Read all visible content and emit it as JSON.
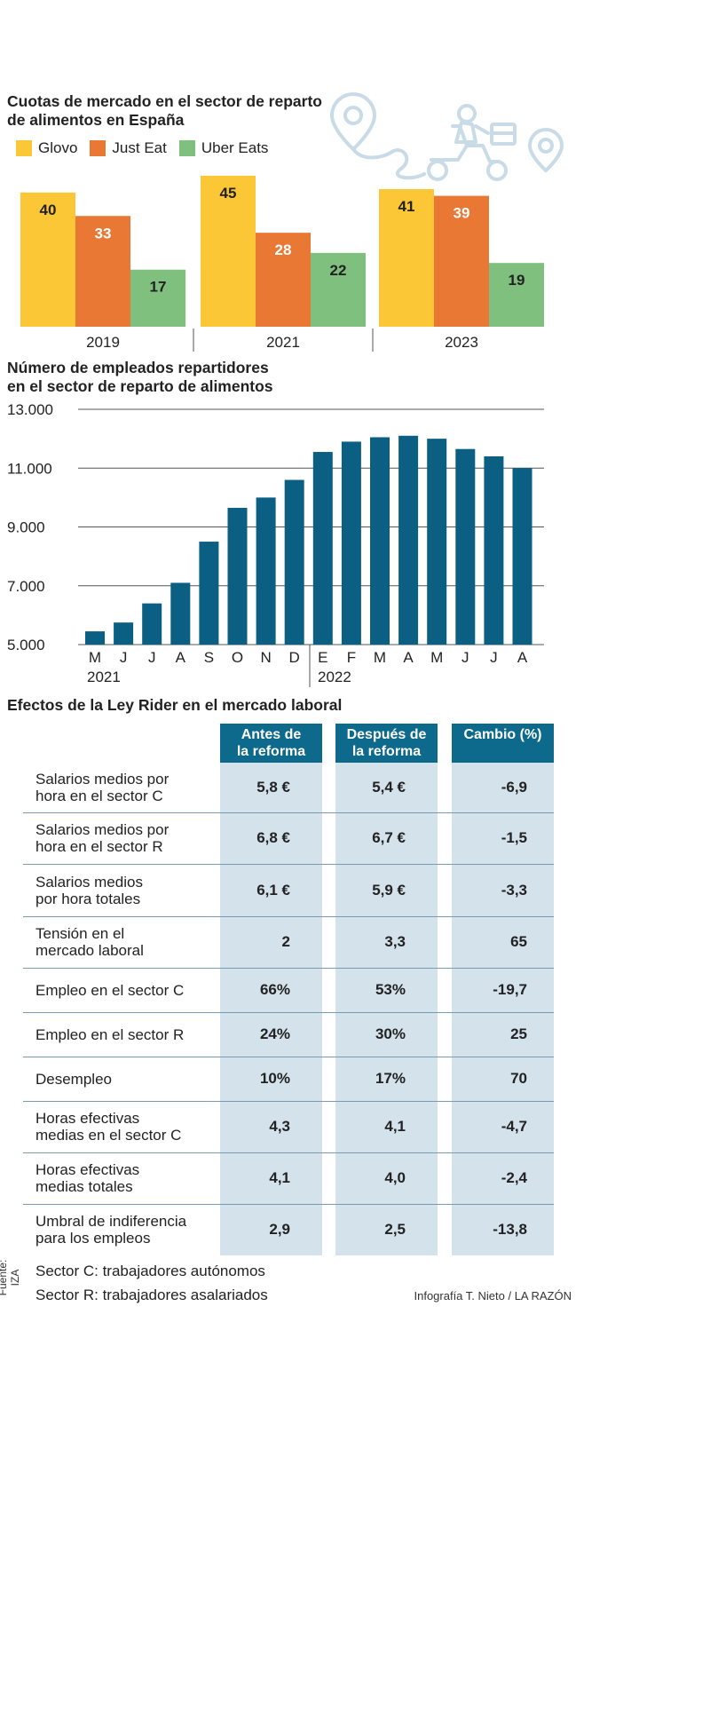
{
  "market": {
    "title_line1": "Cuotas de mercado en el sector de reparto",
    "title_line2": "de alimentos en España",
    "legend": [
      {
        "label": "Glovo",
        "color": "#fcc737"
      },
      {
        "label": "Just Eat",
        "color": "#e87834"
      },
      {
        "label": "Uber Eats",
        "color": "#7fc07f"
      }
    ],
    "icon": "delivery-scooter-route-icon"
  },
  "employees": {
    "title_line1": "Número de empleados repartidores",
    "title_line2": "en el sector de reparto de alimentos",
    "bar_color": "#0b5f82",
    "years": [
      "2021",
      "2022"
    ]
  },
  "chart_data": [
    {
      "type": "bar",
      "title": "Cuotas de mercado en el sector de reparto de alimentos en España",
      "categories": [
        "2019",
        "2021",
        "2023"
      ],
      "series": [
        {
          "name": "Glovo",
          "values": [
            40,
            45,
            41
          ]
        },
        {
          "name": "Just Eat",
          "values": [
            33,
            28,
            39
          ]
        },
        {
          "name": "Uber Eats",
          "values": [
            17,
            22,
            19
          ]
        }
      ],
      "ylim": [
        0,
        45
      ]
    },
    {
      "type": "bar",
      "title": "Número de empleados repartidores en el sector de reparto de alimentos",
      "categories": [
        "M",
        "J",
        "J",
        "A",
        "S",
        "O",
        "N",
        "D",
        "E",
        "F",
        "M",
        "A",
        "M",
        "J",
        "J",
        "A"
      ],
      "values": [
        5450,
        5750,
        6400,
        7100,
        8500,
        9650,
        10000,
        10600,
        11550,
        11900,
        12050,
        12100,
        12000,
        11650,
        11400,
        11000
      ],
      "yticks": [
        "5.000",
        "7.000",
        "9.000",
        "11.000",
        "13.000"
      ],
      "ylim": [
        5000,
        13000
      ],
      "grid": true
    }
  ],
  "table": {
    "title": "Efectos de la Ley Rider en el mercado laboral",
    "headers": [
      "Antes de la reforma",
      "Después de la reforma",
      "Cambio (%)"
    ],
    "header_lines": [
      [
        "Antes de",
        "la reforma"
      ],
      [
        "Después de",
        "la reforma"
      ],
      [
        "Cambio (%)",
        ""
      ]
    ],
    "rows": [
      {
        "label": [
          "Salarios medios por",
          "hora en el sector C"
        ],
        "values": [
          "5,8 €",
          "5,4 €",
          "-6,9"
        ]
      },
      {
        "label": [
          "Salarios medios por",
          "hora en el sector R"
        ],
        "values": [
          "6,8 €",
          "6,7 €",
          "-1,5"
        ]
      },
      {
        "label": [
          "Salarios medios",
          "por hora totales"
        ],
        "values": [
          "6,1 €",
          "5,9 €",
          "-3,3"
        ]
      },
      {
        "label": [
          "Tensión en el",
          "mercado laboral"
        ],
        "values": [
          "2",
          "3,3",
          "65"
        ]
      },
      {
        "label": [
          "Empleo en el sector C",
          ""
        ],
        "values": [
          "66%",
          "53%",
          "-19,7"
        ]
      },
      {
        "label": [
          "Empleo en el sector R",
          ""
        ],
        "values": [
          "24%",
          "30%",
          "25"
        ]
      },
      {
        "label": [
          "Desempleo",
          ""
        ],
        "values": [
          "10%",
          "17%",
          "70"
        ]
      },
      {
        "label": [
          "Horas efectivas",
          "medias en el sector C"
        ],
        "values": [
          "4,3",
          "4,1",
          "-4,7"
        ]
      },
      {
        "label": [
          "Horas efectivas",
          "medias totales"
        ],
        "values": [
          "4,1",
          "4,0",
          "-2,4"
        ]
      },
      {
        "label": [
          "Umbral de indiferencia",
          "para los empleos"
        ],
        "values": [
          "2,9",
          "2,5",
          "-13,8"
        ]
      }
    ]
  },
  "footer": {
    "note1": "Sector C: trabajadores autónomos",
    "note2": "Sector R: trabajadores asalariados",
    "source": "Fuente: IZA",
    "credit": "Infografía T. Nieto / LA RAZÓN"
  }
}
